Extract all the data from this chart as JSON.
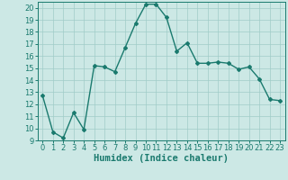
{
  "xlabel": "Humidex (Indice chaleur)",
  "x": [
    0,
    1,
    2,
    3,
    4,
    5,
    6,
    7,
    8,
    9,
    10,
    11,
    12,
    13,
    14,
    15,
    16,
    17,
    18,
    19,
    20,
    21,
    22,
    23
  ],
  "y": [
    12.7,
    9.7,
    9.2,
    11.3,
    9.9,
    15.2,
    15.1,
    14.7,
    16.7,
    18.7,
    20.3,
    20.3,
    19.2,
    16.4,
    17.1,
    15.4,
    15.4,
    15.5,
    15.4,
    14.9,
    15.1,
    14.1,
    12.4,
    12.3
  ],
  "line_color": "#1a7a6e",
  "marker": "D",
  "marker_size": 2.0,
  "line_width": 1.0,
  "background_color": "#cce8e5",
  "grid_color": "#a0ccc8",
  "ylim": [
    9,
    20.5
  ],
  "xlim": [
    -0.5,
    23.5
  ],
  "yticks": [
    9,
    10,
    11,
    12,
    13,
    14,
    15,
    16,
    17,
    18,
    19,
    20
  ],
  "xticks": [
    0,
    1,
    2,
    3,
    4,
    5,
    6,
    7,
    8,
    9,
    10,
    11,
    12,
    13,
    14,
    15,
    16,
    17,
    18,
    19,
    20,
    21,
    22,
    23
  ],
  "tick_fontsize": 6.0,
  "xlabel_fontsize": 7.5,
  "xlabel_fontfamily": "monospace"
}
